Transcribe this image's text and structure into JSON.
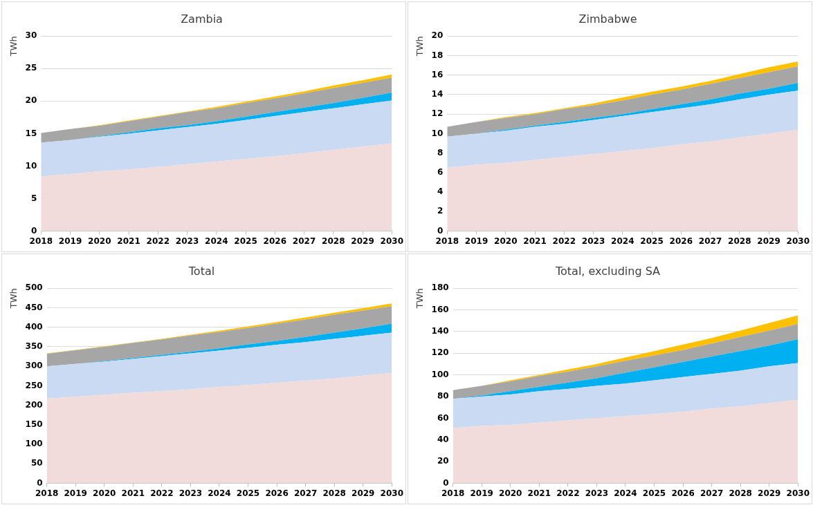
{
  "chart_data": [
    {
      "type": "area",
      "title": "Zambia",
      "ylabel": "TWh",
      "stacked": true,
      "grid": "y",
      "categories": [
        "2018",
        "2019",
        "2020",
        "2021",
        "2022",
        "2023",
        "2024",
        "2025",
        "2026",
        "2027",
        "2028",
        "2029",
        "2030"
      ],
      "ylim": [
        0,
        30
      ],
      "yticks": [
        0,
        5,
        10,
        15,
        20,
        25,
        30
      ],
      "series": [
        {
          "color": "#f2dcdb",
          "values": [
            8.4,
            8.8,
            9.2,
            9.5,
            9.9,
            10.3,
            10.7,
            11.1,
            11.5,
            12.0,
            12.5,
            13.0,
            13.5
          ]
        },
        {
          "color": "#c9daf2",
          "values": [
            5.2,
            5.2,
            5.3,
            5.5,
            5.6,
            5.7,
            5.8,
            6.0,
            6.2,
            6.3,
            6.4,
            6.5,
            6.6
          ]
        },
        {
          "color": "#00b0f0",
          "values": [
            0,
            0,
            0.1,
            0.2,
            0.3,
            0.3,
            0.4,
            0.5,
            0.6,
            0.7,
            0.8,
            1.0,
            1.2
          ]
        },
        {
          "color": "#a6a6a6",
          "values": [
            1.5,
            1.7,
            1.6,
            1.7,
            1.8,
            2.0,
            2.0,
            2.1,
            2.1,
            2.2,
            2.3,
            2.3,
            2.3
          ]
        },
        {
          "color": "#ffc000",
          "values": [
            0,
            0,
            0.1,
            0.1,
            0.1,
            0.1,
            0.2,
            0.2,
            0.3,
            0.3,
            0.4,
            0.4,
            0.5
          ]
        }
      ]
    },
    {
      "type": "area",
      "title": "Zimbabwe",
      "ylabel": "TWh",
      "stacked": true,
      "grid": "y",
      "categories": [
        "2018",
        "2019",
        "2020",
        "2021",
        "2022",
        "2023",
        "2024",
        "2025",
        "2026",
        "2027",
        "2028",
        "2029",
        "2030"
      ],
      "ylim": [
        0,
        20
      ],
      "yticks": [
        0,
        2,
        4,
        6,
        8,
        10,
        12,
        14,
        16,
        18,
        20
      ],
      "series": [
        {
          "color": "#f2dcdb",
          "values": [
            6.5,
            6.8,
            7.0,
            7.3,
            7.6,
            7.9,
            8.2,
            8.5,
            8.9,
            9.2,
            9.6,
            10.0,
            10.4
          ]
        },
        {
          "color": "#c9daf2",
          "values": [
            3.2,
            3.2,
            3.3,
            3.4,
            3.4,
            3.5,
            3.6,
            3.7,
            3.7,
            3.8,
            3.9,
            4.0,
            4.0
          ]
        },
        {
          "color": "#00b0f0",
          "values": [
            0,
            0,
            0.1,
            0.1,
            0.2,
            0.2,
            0.2,
            0.3,
            0.4,
            0.5,
            0.6,
            0.6,
            0.8
          ]
        },
        {
          "color": "#a6a6a6",
          "values": [
            1.0,
            1.2,
            1.2,
            1.2,
            1.3,
            1.3,
            1.4,
            1.5,
            1.5,
            1.6,
            1.6,
            1.7,
            1.7
          ]
        },
        {
          "color": "#ffc000",
          "values": [
            0,
            0,
            0.1,
            0.1,
            0.1,
            0.2,
            0.3,
            0.3,
            0.3,
            0.3,
            0.4,
            0.5,
            0.5
          ]
        }
      ]
    },
    {
      "type": "area",
      "title": "Total",
      "ylabel": "TWh",
      "stacked": true,
      "grid": "y",
      "categories": [
        "2018",
        "2019",
        "2020",
        "2021",
        "2022",
        "2023",
        "2024",
        "2025",
        "2026",
        "2027",
        "2028",
        "2029",
        "2030"
      ],
      "ylim": [
        0,
        500
      ],
      "yticks": [
        0,
        50,
        100,
        150,
        200,
        250,
        300,
        350,
        400,
        450,
        500
      ],
      "series": [
        {
          "color": "#f2dcdb",
          "values": [
            217,
            222,
            227,
            232,
            236,
            241,
            247,
            252,
            258,
            263,
            269,
            276,
            283
          ]
        },
        {
          "color": "#c9daf2",
          "values": [
            83,
            84,
            85,
            87,
            90,
            92,
            93,
            95,
            97,
            99,
            101,
            102,
            103
          ]
        },
        {
          "color": "#00b0f0",
          "values": [
            0,
            0,
            1,
            2,
            3,
            4,
            6,
            9,
            10,
            13,
            16,
            19,
            23
          ]
        },
        {
          "color": "#a6a6a6",
          "values": [
            32,
            35,
            37,
            39,
            40,
            42,
            42,
            42,
            44,
            45,
            46,
            46,
            45
          ]
        },
        {
          "color": "#ffc000",
          "values": [
            1,
            1,
            1,
            1,
            1,
            2,
            3,
            4,
            4,
            5,
            5,
            6,
            7
          ]
        }
      ]
    },
    {
      "type": "area",
      "title": "Total, excluding SA",
      "ylabel": "TWh",
      "stacked": true,
      "grid": "y",
      "categories": [
        "2018",
        "2019",
        "2020",
        "2021",
        "2022",
        "2023",
        "2024",
        "2025",
        "2026",
        "2027",
        "2028",
        "2029",
        "2030"
      ],
      "ylim": [
        0,
        180
      ],
      "yticks": [
        0,
        20,
        40,
        60,
        80,
        100,
        120,
        140,
        160,
        180
      ],
      "series": [
        {
          "color": "#f2dcdb",
          "values": [
            51,
            53,
            54,
            56,
            58,
            60,
            62,
            64,
            66,
            69,
            71,
            74,
            77
          ]
        },
        {
          "color": "#c9daf2",
          "values": [
            27,
            27,
            28,
            29,
            29,
            30,
            30,
            31,
            32,
            32,
            33,
            34,
            34
          ]
        },
        {
          "color": "#00b0f0",
          "values": [
            0,
            1,
            3,
            4,
            6,
            7,
            10,
            12,
            14,
            16,
            18,
            19,
            22
          ]
        },
        {
          "color": "#a6a6a6",
          "values": [
            8,
            9,
            9,
            10,
            10,
            11,
            11,
            11,
            11,
            12,
            13,
            14,
            14
          ]
        },
        {
          "color": "#ffc000",
          "values": [
            0,
            0,
            1,
            1,
            2,
            2,
            3,
            4,
            5,
            5,
            6,
            7,
            8
          ]
        }
      ]
    }
  ]
}
